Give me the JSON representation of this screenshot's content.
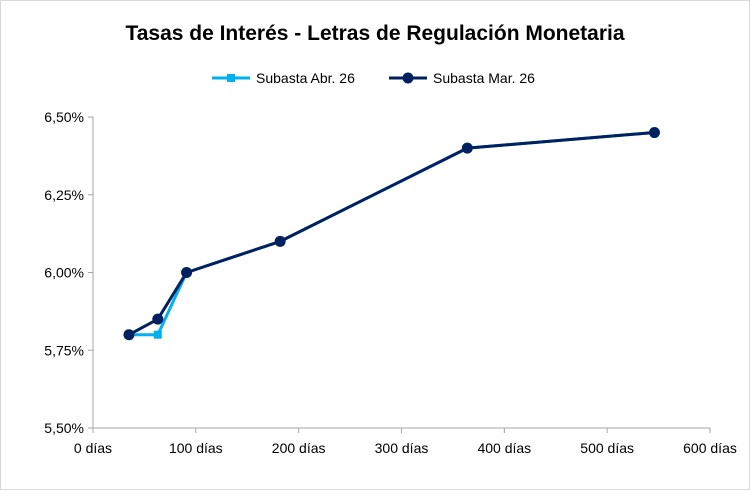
{
  "chart_data": {
    "type": "line",
    "title": "Tasas de Interés - Letras de Regulación Monetaria",
    "xlabel": "",
    "ylabel": "",
    "xlim": [
      0,
      600
    ],
    "ylim": [
      5.5,
      6.5
    ],
    "x_ticks": [
      {
        "value": 0,
        "label": "0 días"
      },
      {
        "value": 100,
        "label": "100 días"
      },
      {
        "value": 200,
        "label": "200 días"
      },
      {
        "value": 300,
        "label": "300 días"
      },
      {
        "value": 400,
        "label": "400 días"
      },
      {
        "value": 500,
        "label": "500 días"
      },
      {
        "value": 600,
        "label": "600 días"
      }
    ],
    "y_ticks": [
      {
        "value": 5.5,
        "label": "5,50%"
      },
      {
        "value": 5.75,
        "label": "5,75%"
      },
      {
        "value": 6.0,
        "label": "6,00%"
      },
      {
        "value": 6.25,
        "label": "6,25%"
      },
      {
        "value": 6.5,
        "label": "6,50%"
      }
    ],
    "grid": false,
    "legend_position": "top",
    "series": [
      {
        "name": "Subasta Abr. 26",
        "color": "#00b0f0",
        "marker": "square",
        "x": [
          35,
          63,
          91,
          182,
          364,
          546
        ],
        "y": [
          5.8,
          5.8,
          6.0,
          6.1,
          6.4,
          6.45
        ]
      },
      {
        "name": "Subasta Mar. 26",
        "color": "#002060",
        "marker": "circle",
        "x": [
          35,
          63,
          91,
          182,
          364,
          546
        ],
        "y": [
          5.8,
          5.85,
          6.0,
          6.1,
          6.4,
          6.45
        ]
      }
    ]
  }
}
